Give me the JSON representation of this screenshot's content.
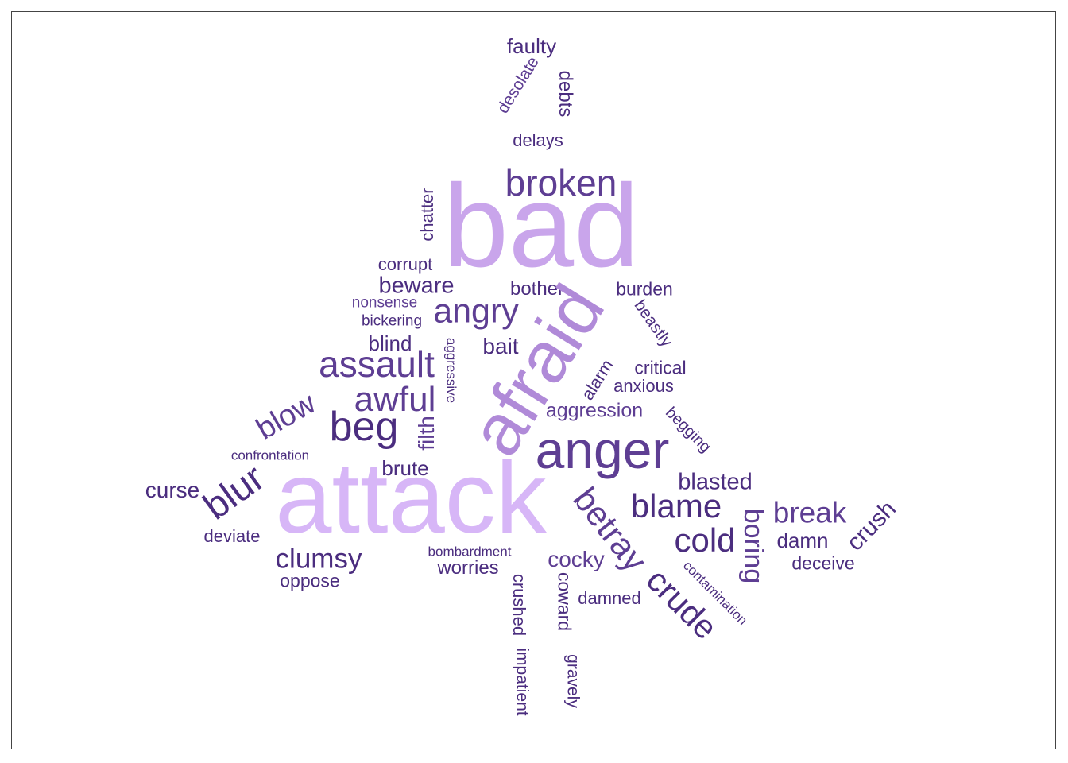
{
  "colors": {
    "dark": "#4b2d7f",
    "mid": "#5e3e93",
    "light1": "#c9a5eb",
    "light2": "#b08ad8",
    "light3": "#d7b6f7"
  },
  "words": {
    "faulty": "faulty",
    "desolate": "desolate",
    "debts": "debts",
    "delays": "delays",
    "broken": "broken",
    "chatter": "chatter",
    "bad": "bad",
    "corrupt": "corrupt",
    "beware": "beware",
    "bother": "bother",
    "burden": "burden",
    "nonsense": "nonsense",
    "angry": "angry",
    "bickering": "bickering",
    "beastly": "beastly",
    "blind": "blind",
    "aggressive": "aggressive",
    "bait": "bait",
    "assault": "assault",
    "afraid": "afraid",
    "critical": "critical",
    "alarm": "alarm",
    "anxious": "anxious",
    "awful": "awful",
    "blow": "blow",
    "aggression": "aggression",
    "beg": "beg",
    "filth": "filth",
    "begging": "begging",
    "anger": "anger",
    "confrontation": "confrontation",
    "brute": "brute",
    "blasted": "blasted",
    "curse": "curse",
    "blur": "blur",
    "attack": "attack",
    "betray": "betray",
    "blame": "blame",
    "break": "break",
    "boring": "boring",
    "crush": "crush",
    "deviate": "deviate",
    "cold": "cold",
    "damn": "damn",
    "clumsy": "clumsy",
    "bombardment": "bombardment",
    "cocky": "cocky",
    "deceive": "deceive",
    "worries": "worries",
    "oppose": "oppose",
    "contamination": "contamination",
    "crude": "crude",
    "crushed": "crushed",
    "coward": "coward",
    "damned": "damned",
    "impatient": "impatient",
    "gravely": "gravely"
  }
}
